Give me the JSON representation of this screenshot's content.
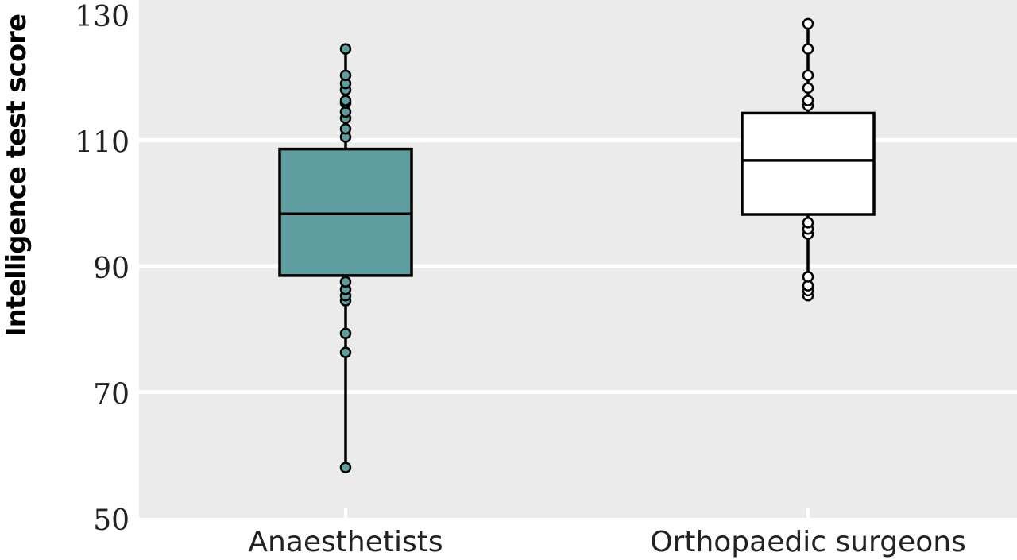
{
  "chart_data": {
    "type": "boxplot",
    "ylabel": "Intelligence test score",
    "xlabel": "",
    "ylim": [
      50,
      130
    ],
    "yticks": [
      50,
      70,
      90,
      110,
      130
    ],
    "grid": true,
    "categories": [
      "Anaesthetists",
      "Orthopaedic surgeons"
    ],
    "boxes": [
      {
        "category": "Anaesthetists",
        "q1": 88.5,
        "median": 98.3,
        "q3": 108.6,
        "whisker_low": 58,
        "whisker_high": 124.5,
        "points": [
          58,
          76.3,
          79.3,
          84.5,
          85.3,
          86.3,
          87.5,
          110.5,
          111.8,
          113.5,
          114.5,
          115.9,
          116.3,
          118,
          119,
          120.3,
          124.5
        ],
        "fill": "#5f9ea0"
      },
      {
        "category": "Orthopaedic surgeons",
        "q1": 98.2,
        "median": 106.8,
        "q3": 114.3,
        "whisker_low": 85.3,
        "whisker_high": 128.5,
        "points": [
          85.3,
          86.1,
          86.9,
          88.3,
          95.1,
          95.9,
          96.9,
          115.5,
          116.3,
          118.3,
          120.3,
          124.5,
          128.5
        ],
        "fill": "#ffffff"
      }
    ],
    "colors": {
      "panel": "#ebebeb",
      "grid": "#ffffff",
      "stroke": "#000000",
      "box1": "#5f9ea0",
      "box2": "#ffffff"
    }
  }
}
